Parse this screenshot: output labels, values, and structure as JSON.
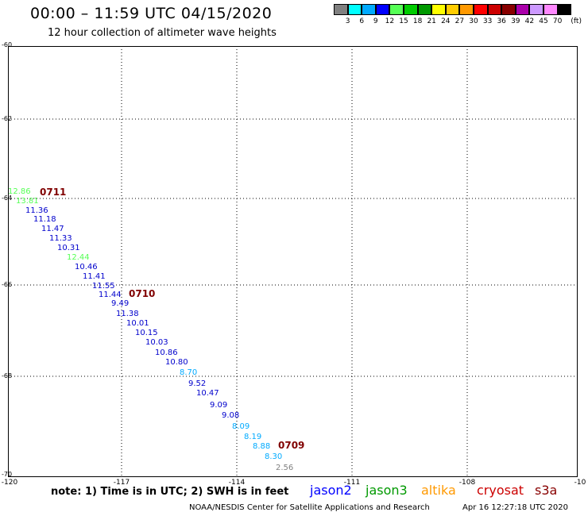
{
  "header": {
    "title": "00:00 – 11:59 UTC 04/15/2020",
    "subtitle": "12 hour collection of altimeter wave heights"
  },
  "scale": {
    "colors": [
      "#808080",
      "#00ffff",
      "#00aaff",
      "#0000ff",
      "#55ff55",
      "#00cc00",
      "#009900",
      "#ffff00",
      "#ffcc00",
      "#ff9900",
      "#ff0000",
      "#cc0000",
      "#880000",
      "#aa00aa",
      "#cc99ff",
      "#ff88ff",
      "#000000"
    ],
    "labels": [
      "3",
      "6",
      "9",
      "12",
      "15",
      "18",
      "21",
      "24",
      "27",
      "30",
      "33",
      "36",
      "39",
      "42",
      "45",
      "70",
      "(ft)"
    ]
  },
  "axes": {
    "lat_labels": [
      "-60",
      "-62",
      "-64",
      "-66",
      "-68",
      "-70"
    ],
    "lon_labels": [
      "-120",
      "-117",
      "-114",
      "-111",
      "-108",
      "-10"
    ]
  },
  "measurements": [
    {
      "text": "12.86",
      "color": "#55ff55"
    },
    {
      "text": "13.81",
      "color": "#55ff55"
    },
    {
      "text": "11.36",
      "color": "#0000cc"
    },
    {
      "text": "11.18",
      "color": "#0000cc"
    },
    {
      "text": "11.47",
      "color": "#0000cc"
    },
    {
      "text": "11.33",
      "color": "#0000cc"
    },
    {
      "text": "10.31",
      "color": "#0000cc"
    },
    {
      "text": "12.44",
      "color": "#55ff55"
    },
    {
      "text": "10.46",
      "color": "#0000cc"
    },
    {
      "text": "11.41",
      "color": "#0000cc"
    },
    {
      "text": "11.55",
      "color": "#0000cc"
    },
    {
      "text": "11.44",
      "color": "#0000cc"
    },
    {
      "text": "9.49",
      "color": "#0000cc"
    },
    {
      "text": "11.38",
      "color": "#0000cc"
    },
    {
      "text": "10.01",
      "color": "#0000cc"
    },
    {
      "text": "10.15",
      "color": "#0000cc"
    },
    {
      "text": "10.03",
      "color": "#0000cc"
    },
    {
      "text": "10.86",
      "color": "#0000cc"
    },
    {
      "text": "10.80",
      "color": "#0000cc"
    },
    {
      "text": "8.70",
      "color": "#00aaff"
    },
    {
      "text": "9.52",
      "color": "#0000cc"
    },
    {
      "text": "10.47",
      "color": "#0000cc"
    },
    {
      "text": "9.09",
      "color": "#0000cc"
    },
    {
      "text": "9.08",
      "color": "#0000cc"
    },
    {
      "text": "8.09",
      "color": "#00aaff"
    },
    {
      "text": "8.19",
      "color": "#00aaff"
    },
    {
      "text": "8.88",
      "color": "#00aaff"
    },
    {
      "text": "8.30",
      "color": "#00aaff"
    },
    {
      "text": "2.56",
      "color": "#808080"
    }
  ],
  "track_times": [
    "0711",
    "0710",
    "0709"
  ],
  "note": "note: 1) Time is in UTC; 2) SWH is in feet",
  "legend": [
    {
      "name": "jason2",
      "color": "#0000ff"
    },
    {
      "name": "jason3",
      "color": "#009900"
    },
    {
      "name": "altika",
      "color": "#ff9900"
    },
    {
      "name": "cryosat",
      "color": "#cc0000"
    },
    {
      "name": "s3a",
      "color": "#880000"
    }
  ],
  "footer": {
    "source": "NOAA/NESDIS Center for Satellite Applications and Research",
    "timestamp": "Apr 16 12:27:18 UTC 2020"
  }
}
